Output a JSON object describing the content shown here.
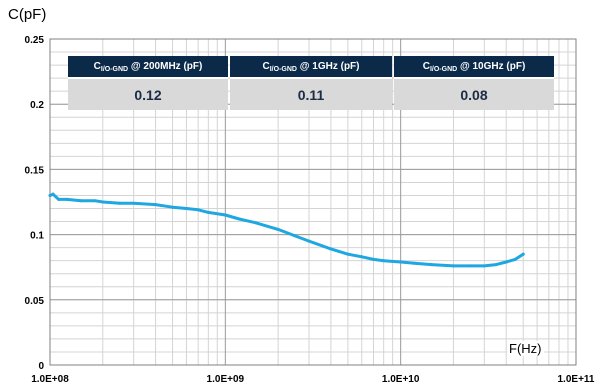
{
  "chart_data": {
    "type": "line",
    "xlabel": "F(Hz)",
    "ylabel": "C(pF)",
    "xscale": "log",
    "xlim": [
      100000000,
      100000000000
    ],
    "ylim": [
      0,
      0.25
    ],
    "x_ticks": [
      100000000,
      1000000000,
      10000000000,
      100000000000
    ],
    "x_tick_labels": [
      "1.0E+08",
      "1.0E+09",
      "1.0E+10",
      "1.0E+11"
    ],
    "y_ticks": [
      0,
      0.05,
      0.1,
      0.15,
      0.2,
      0.25
    ],
    "y_tick_labels": [
      "0",
      "0.05",
      "0.1",
      "0.15",
      "0.2",
      "0.25"
    ],
    "grid": true,
    "series_color": "#1ea7e1",
    "series": [
      {
        "x": [
          100000000,
          104000000,
          112000000,
          125000000,
          150000000,
          180000000,
          200000000,
          250000000,
          300000000,
          400000000,
          500000000,
          600000000,
          700000000,
          800000000,
          1000000000,
          1200000000,
          1500000000,
          2000000000,
          2500000000,
          3000000000,
          4000000000,
          5000000000,
          6000000000,
          7000000000,
          8000000000,
          10000000000,
          12000000000,
          15000000000,
          20000000000,
          25000000000,
          30000000000,
          35000000000,
          40000000000,
          45000000000,
          50000000000
        ],
        "y": [
          0.13,
          0.131,
          0.127,
          0.127,
          0.126,
          0.126,
          0.125,
          0.124,
          0.124,
          0.123,
          0.121,
          0.12,
          0.119,
          0.117,
          0.115,
          0.112,
          0.109,
          0.104,
          0.099,
          0.095,
          0.089,
          0.085,
          0.083,
          0.081,
          0.08,
          0.079,
          0.078,
          0.077,
          0.076,
          0.076,
          0.076,
          0.077,
          0.079,
          0.081,
          0.085
        ]
      }
    ]
  },
  "table": {
    "headers": [
      {
        "main": "C",
        "sub": "I/O-GND",
        "rest": " @ 200MHz (pF)"
      },
      {
        "main": "C",
        "sub": "I/O-GND",
        "rest": " @ 1GHz (pF)"
      },
      {
        "main": "C",
        "sub": "I/O-GND",
        "rest": " @ 10GHz (pF)"
      }
    ],
    "values": [
      "0.12",
      "0.11",
      "0.08"
    ]
  }
}
